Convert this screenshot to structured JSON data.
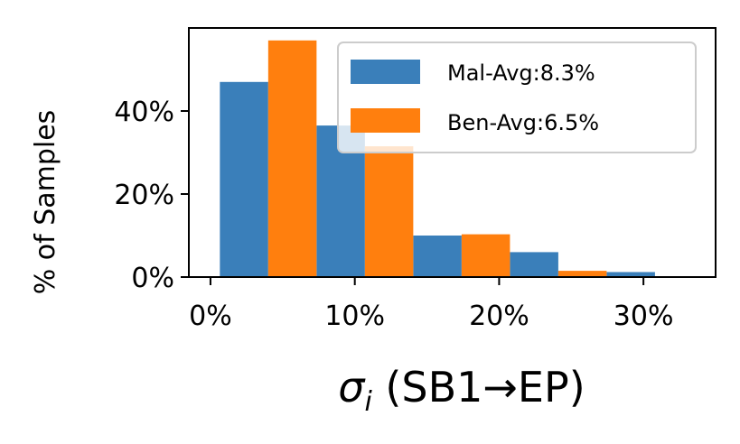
{
  "chart_data": {
    "type": "bar",
    "title": "",
    "xlabel": {
      "symbol": "σ",
      "subscript": "i",
      "suffix": " (SB1→EP)"
    },
    "ylabel": "% of Samples",
    "xlim": [
      -1.5,
      35
    ],
    "ylim": [
      0,
      60
    ],
    "grid": false,
    "legend_placement": "top-right",
    "bin_width": 6.7,
    "bin_starts": [
      0.65,
      7.35,
      14.05,
      20.75,
      27.45
    ],
    "x_ticks": [
      {
        "value": 0,
        "label": "0%"
      },
      {
        "value": 10,
        "label": "10%"
      },
      {
        "value": 20,
        "label": "20%"
      },
      {
        "value": 30,
        "label": "30%"
      }
    ],
    "y_ticks": [
      {
        "value": 0,
        "label": "0%"
      },
      {
        "value": 20,
        "label": "20%"
      },
      {
        "value": 40,
        "label": "40%"
      }
    ],
    "series": [
      {
        "name": "Mal-Avg:8.3%",
        "color": "#3a7fba",
        "values": [
          47,
          36.5,
          10,
          6,
          1.2
        ]
      },
      {
        "name": "Ben-Avg:6.5%",
        "color": "#ff7f0e",
        "values": [
          57,
          31.5,
          10.3,
          1.5,
          0
        ]
      }
    ]
  }
}
